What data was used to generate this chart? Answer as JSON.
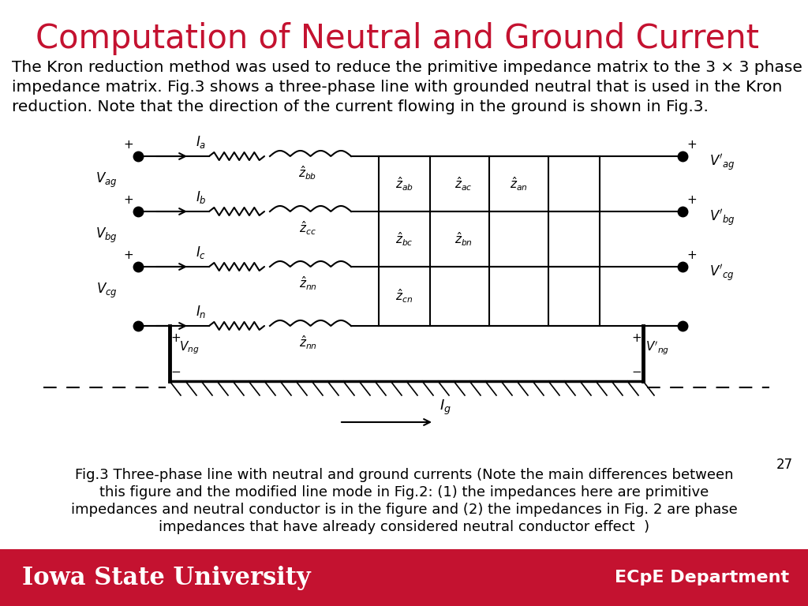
{
  "title": "Computation of Neutral and Ground Current",
  "title_color": "#C41230",
  "title_fontsize": 30,
  "body_text": [
    "The Kron reduction method was used to reduce the primitive impedance matrix to the 3 × 3 phase",
    "impedance matrix. Fig.3 shows a three-phase line with grounded neutral that is used in the Kron",
    "reduction. Note that the direction of the current flowing in the ground is shown in Fig.3."
  ],
  "caption_lines": [
    "Fig.3 Three-phase line with neutral and ground currents (Note the main differences between",
    "this figure and the modified line mode in Fig.2: (1) the impedances here are primitive",
    "impedances and neutral conductor is in the figure and (2) the impedances in Fig. 2 are phase",
    "impedances that have already considered neutral conductor effect  )"
  ],
  "page_number": "27",
  "footer_bg_color": "#C41230",
  "footer_text_left": "Iowa State University",
  "footer_text_right": "ECpE Department",
  "footer_text_color": "#FFFFFF",
  "bg_color": "#FFFFFF"
}
